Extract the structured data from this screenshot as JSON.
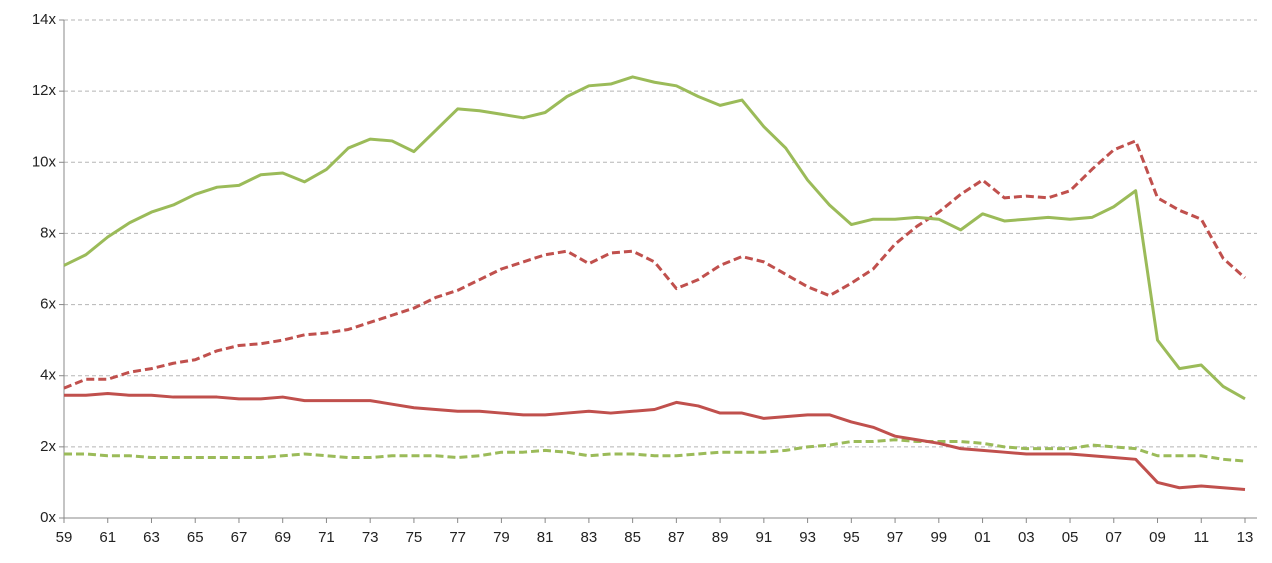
{
  "chart_data": {
    "type": "line",
    "categories": [
      "59",
      null,
      "61",
      null,
      "63",
      null,
      "65",
      null,
      "67",
      null,
      "69",
      null,
      "71",
      null,
      "73",
      null,
      "75",
      null,
      "77",
      null,
      "79",
      null,
      "81",
      null,
      "83",
      null,
      "85",
      null,
      "87",
      null,
      "89",
      null,
      "91",
      null,
      "93",
      null,
      "95",
      null,
      "97",
      null,
      "99",
      null,
      "01",
      null,
      "03",
      null,
      "05",
      null,
      "07",
      null,
      "09",
      null,
      "11",
      null,
      "13"
    ],
    "series": [
      {
        "color": "#c0504d",
        "dash": true,
        "values": [
          3.65,
          3.9,
          3.9,
          4.1,
          4.2,
          4.35,
          4.45,
          4.7,
          4.85,
          4.9,
          5.0,
          5.15,
          5.2,
          5.3,
          5.5,
          5.7,
          5.9,
          6.2,
          6.4,
          6.7,
          7.0,
          7.2,
          7.4,
          7.5,
          7.15,
          7.45,
          7.5,
          7.2,
          6.45,
          6.7,
          7.1,
          7.35,
          7.2,
          6.85,
          6.5,
          6.25,
          6.6,
          7.0,
          7.7,
          8.2,
          8.6,
          9.1,
          9.5,
          9.0,
          9.05,
          9.0,
          9.2,
          9.8,
          10.35,
          10.6,
          9.0,
          8.65,
          8.4,
          7.3,
          6.75
        ]
      },
      {
        "color": "#9bbb59",
        "dash": true,
        "values": [
          1.8,
          1.8,
          1.75,
          1.75,
          1.7,
          1.7,
          1.7,
          1.7,
          1.7,
          1.7,
          1.75,
          1.8,
          1.75,
          1.7,
          1.7,
          1.75,
          1.75,
          1.75,
          1.7,
          1.75,
          1.85,
          1.85,
          1.9,
          1.85,
          1.75,
          1.8,
          1.8,
          1.75,
          1.75,
          1.8,
          1.85,
          1.85,
          1.85,
          1.9,
          2.0,
          2.05,
          2.15,
          2.15,
          2.2,
          2.15,
          2.15,
          2.15,
          2.1,
          2.0,
          1.95,
          1.95,
          1.95,
          2.05,
          2.0,
          1.95,
          1.75,
          1.75,
          1.75,
          1.65,
          1.6
        ]
      },
      {
        "color": "#c0504d",
        "dash": false,
        "values": [
          3.45,
          3.45,
          3.5,
          3.45,
          3.45,
          3.4,
          3.4,
          3.4,
          3.35,
          3.35,
          3.4,
          3.3,
          3.3,
          3.3,
          3.3,
          3.2,
          3.1,
          3.05,
          3.0,
          3.0,
          2.95,
          2.9,
          2.9,
          2.95,
          3.0,
          2.95,
          3.0,
          3.05,
          3.25,
          3.15,
          2.95,
          2.95,
          2.8,
          2.85,
          2.9,
          2.9,
          2.7,
          2.55,
          2.3,
          2.2,
          2.1,
          1.95,
          1.9,
          1.85,
          1.8,
          1.8,
          1.8,
          1.75,
          1.7,
          1.65,
          1.0,
          0.85,
          0.9,
          0.85,
          0.8
        ]
      },
      {
        "color": "#9bbb59",
        "dash": false,
        "values": [
          7.1,
          7.4,
          7.9,
          8.3,
          8.6,
          8.8,
          9.1,
          9.3,
          9.35,
          9.65,
          9.7,
          9.45,
          9.8,
          10.4,
          10.65,
          10.6,
          10.3,
          10.9,
          11.5,
          11.45,
          11.35,
          11.25,
          11.4,
          11.85,
          12.15,
          12.2,
          12.4,
          12.25,
          12.15,
          11.85,
          11.6,
          11.75,
          11.0,
          10.4,
          9.5,
          8.8,
          8.25,
          8.4,
          8.4,
          8.45,
          8.4,
          8.1,
          8.55,
          8.35,
          8.4,
          8.45,
          8.4,
          8.45,
          8.75,
          9.2,
          5.0,
          4.2,
          4.3,
          3.7,
          3.35
        ]
      }
    ],
    "ylim": [
      0,
      14
    ],
    "yticks": [
      {
        "value": 0,
        "label": "0x"
      },
      {
        "value": 2,
        "label": "2x"
      },
      {
        "value": 4,
        "label": "4x"
      },
      {
        "value": 6,
        "label": "6x"
      },
      {
        "value": 8,
        "label": "8x"
      },
      {
        "value": 10,
        "label": "10x"
      },
      {
        "value": 12,
        "label": "12x"
      },
      {
        "value": 14,
        "label": "14x"
      }
    ],
    "grid": true
  }
}
